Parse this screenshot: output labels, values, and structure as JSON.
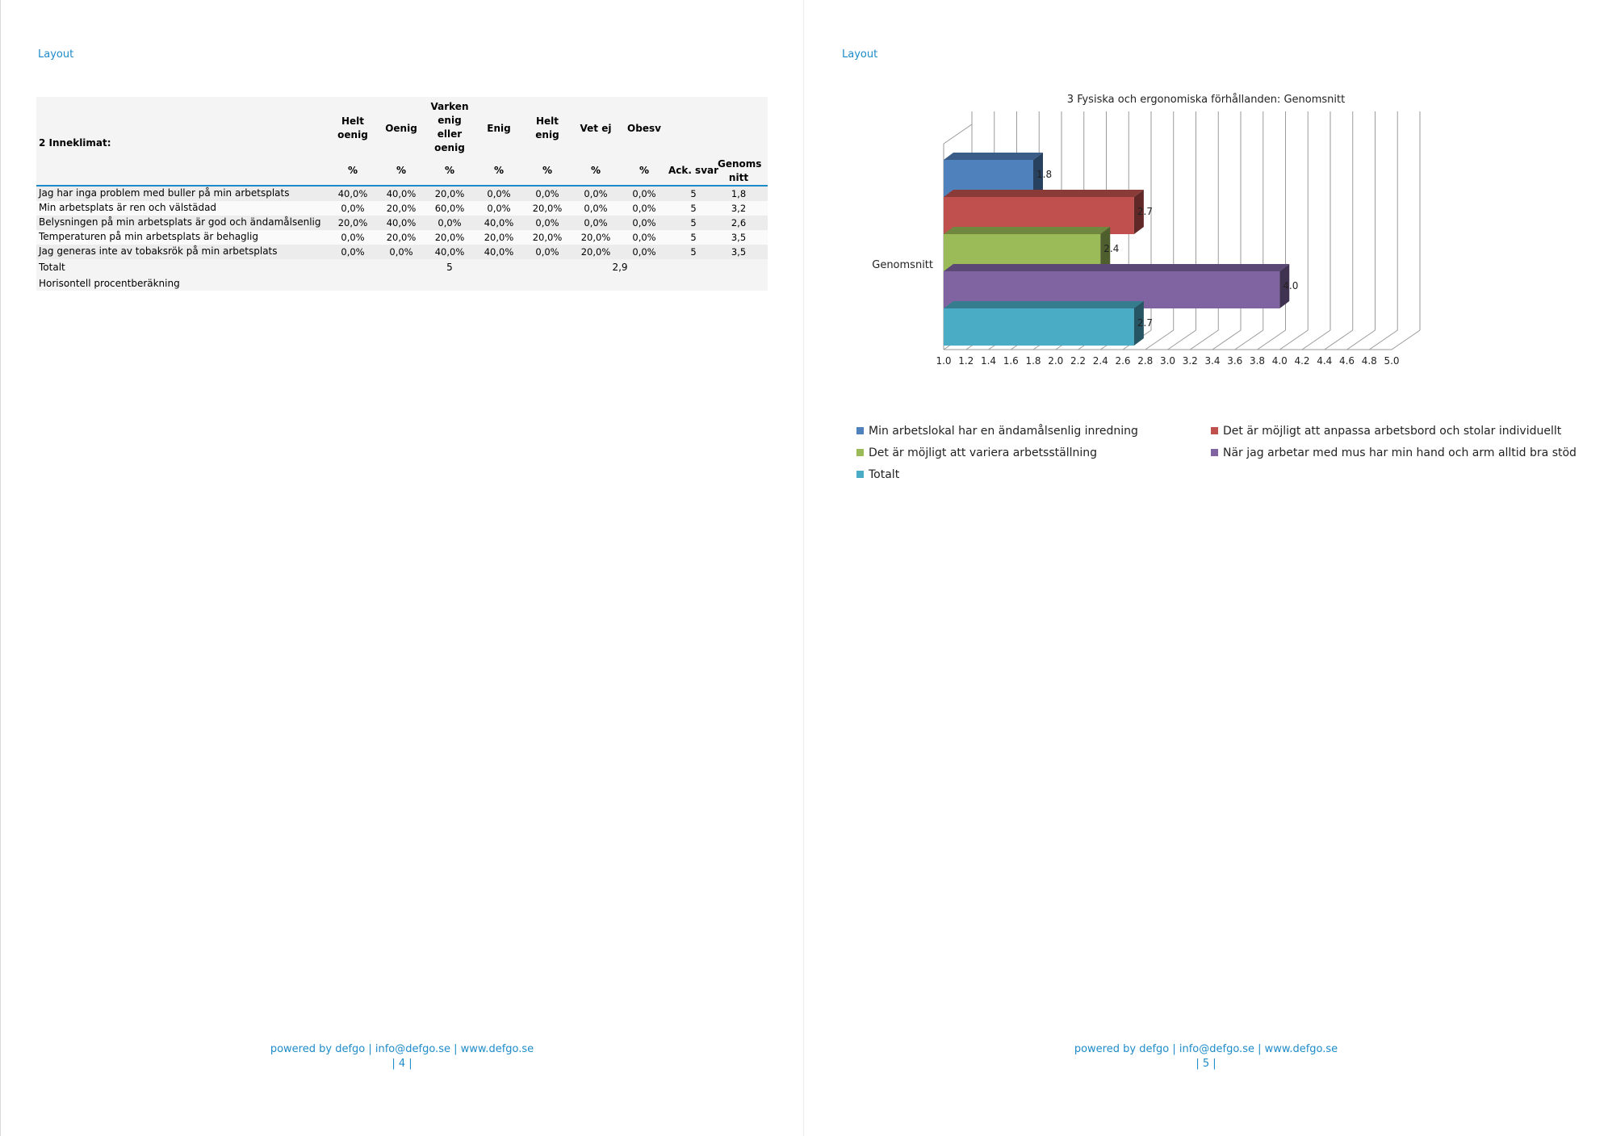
{
  "pages": [
    {
      "header": "Layout",
      "footer": {
        "credit": "powered by defgo | info@defgo.se | www.defgo.se",
        "page_no": "| 4 |"
      },
      "table": {
        "title": "2 Inneklimat:",
        "columns": [
          "Helt oenig",
          "Oenig",
          "Varken enig eller oenig",
          "Enig",
          "Helt enig",
          "Vet ej",
          "Obesv"
        ],
        "pct_label": "%",
        "ack_label": "Ack. svar",
        "avg_label": "Genoms nitt",
        "rows": [
          {
            "q": "Jag har inga problem med buller på min arbetsplats",
            "v": [
              "40,0%",
              "40,0%",
              "20,0%",
              "0,0%",
              "0,0%",
              "0,0%",
              "0,0%"
            ],
            "ack": "5",
            "avg": "1,8"
          },
          {
            "q": "Min arbetsplats är ren och välstädad",
            "v": [
              "0,0%",
              "20,0%",
              "60,0%",
              "0,0%",
              "20,0%",
              "0,0%",
              "0,0%"
            ],
            "ack": "5",
            "avg": "3,2"
          },
          {
            "q": "Belysningen på min arbetsplats är god och ändamålsenlig",
            "v": [
              "20,0%",
              "40,0%",
              "0,0%",
              "40,0%",
              "0,0%",
              "0,0%",
              "0,0%"
            ],
            "ack": "5",
            "avg": "2,6"
          },
          {
            "q": "Temperaturen på min arbetsplats är behaglig",
            "v": [
              "0,0%",
              "20,0%",
              "20,0%",
              "20,0%",
              "20,0%",
              "20,0%",
              "0,0%"
            ],
            "ack": "5",
            "avg": "3,5"
          },
          {
            "q": "Jag generas inte av tobaksrök på min arbetsplats",
            "v": [
              "0,0%",
              "0,0%",
              "40,0%",
              "40,0%",
              "0,0%",
              "20,0%",
              "0,0%"
            ],
            "ack": "5",
            "avg": "3,5"
          }
        ],
        "total_label": "Totalt",
        "total_count": "5",
        "total_avg": "2,9",
        "note": "Horisontell procentberäkning"
      }
    },
    {
      "header": "Layout",
      "footer": {
        "credit": "powered by defgo | info@defgo.se | www.defgo.se",
        "page_no": "| 5 |"
      }
    }
  ],
  "chart_data": {
    "type": "bar",
    "orientation": "horizontal",
    "style": "3d",
    "title": "3 Fysiska och ergonomiska förhållanden: Genomsnitt",
    "categories": [
      "Genomsnitt"
    ],
    "xlim": [
      1.0,
      5.0
    ],
    "xticks": [
      "1.0",
      "1.2",
      "1.4",
      "1.6",
      "1.8",
      "2.0",
      "2.2",
      "2.4",
      "2.6",
      "2.8",
      "3.0",
      "3.2",
      "3.4",
      "3.6",
      "3.8",
      "4.0",
      "4.2",
      "4.4",
      "4.6",
      "4.8",
      "5.0"
    ],
    "grid": true,
    "legend_position": "bottom",
    "series": [
      {
        "name": "Min arbetslokal har en ändamålsenlig inredning",
        "values": [
          1.8
        ],
        "label": "1.8",
        "color": "#4f81bd"
      },
      {
        "name": "Det är möjligt att anpassa arbetsbord och stolar individuellt",
        "values": [
          2.7
        ],
        "label": "2.7",
        "color": "#c0504d"
      },
      {
        "name": "Det är möjligt att variera arbetsställning",
        "values": [
          2.4
        ],
        "label": "2.4",
        "color": "#9bbb59"
      },
      {
        "name": "När jag arbetar med mus har min hand och arm alltid bra stöd",
        "values": [
          4.0
        ],
        "label": "4.0",
        "color": "#8064a2"
      },
      {
        "name": "Totalt",
        "values": [
          2.7
        ],
        "label": "2.7",
        "color": "#4bacc6"
      }
    ]
  }
}
